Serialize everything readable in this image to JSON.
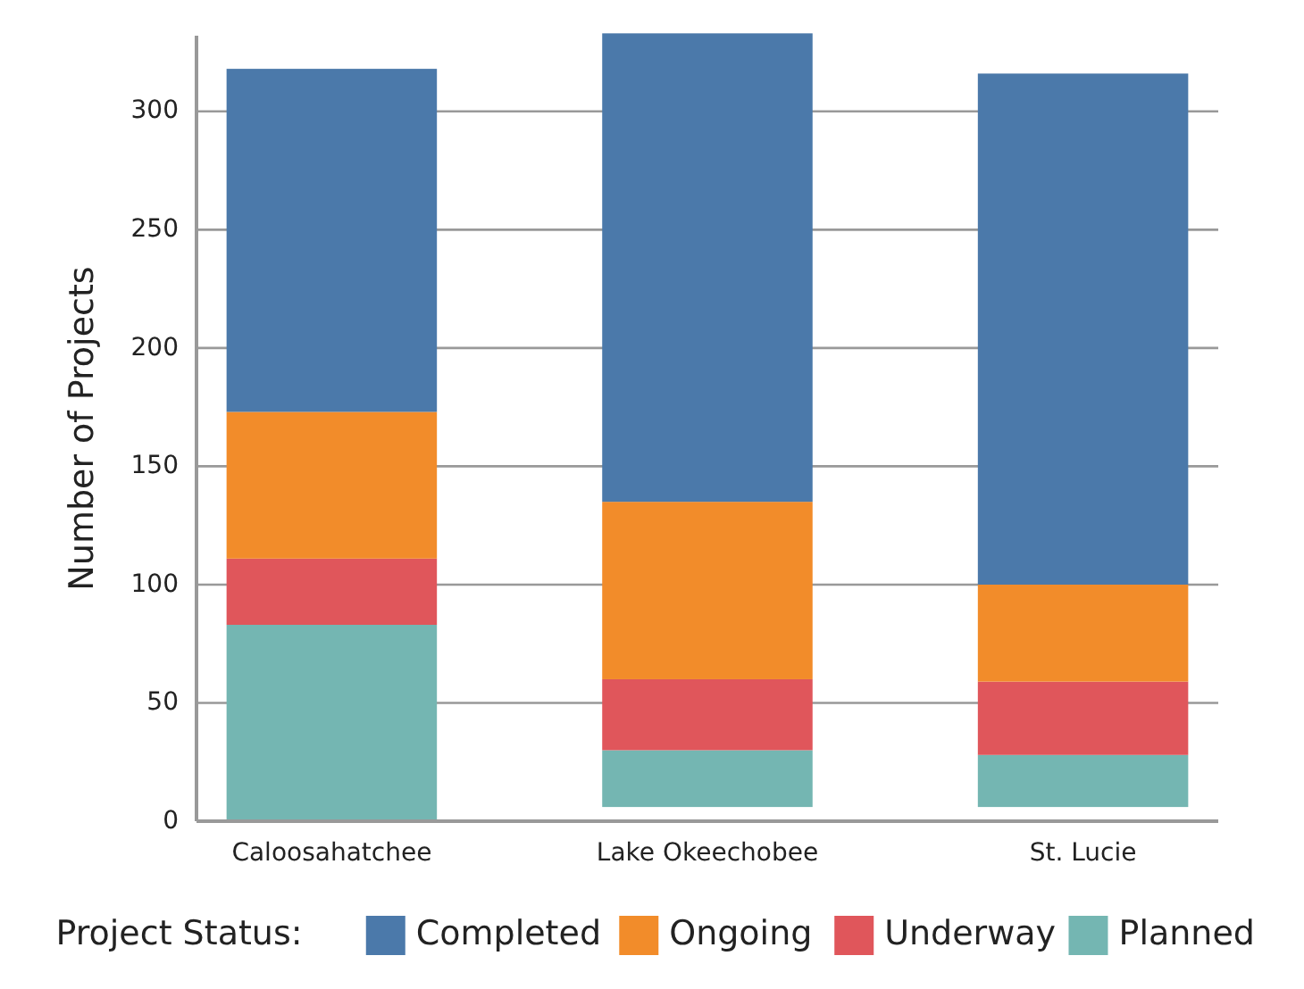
{
  "chart_data": {
    "type": "bar",
    "stacked": true,
    "ylabel": "Number of Projects",
    "legend_title": "Project Status:",
    "legend": "bottom",
    "grid": "y",
    "categories": [
      "Caloosahatchee",
      "Lake Okeechobee",
      "St. Lucie"
    ],
    "ylim": [
      0,
      332
    ],
    "yticks": [
      0,
      50,
      100,
      150,
      200,
      250,
      300
    ],
    "series": [
      {
        "name": "Planned",
        "color": "#74b6b2",
        "values": [
          83,
          24,
          22
        ],
        "base": [
          0,
          6,
          6
        ]
      },
      {
        "name": "Underway",
        "color": "#e0565b",
        "values": [
          28,
          30,
          31
        ]
      },
      {
        "name": "Ongoing",
        "color": "#f28c2a",
        "values": [
          62,
          75,
          41
        ]
      },
      {
        "name": "Completed",
        "color": "#4b79aa",
        "values": [
          145,
          198,
          216
        ]
      }
    ]
  }
}
